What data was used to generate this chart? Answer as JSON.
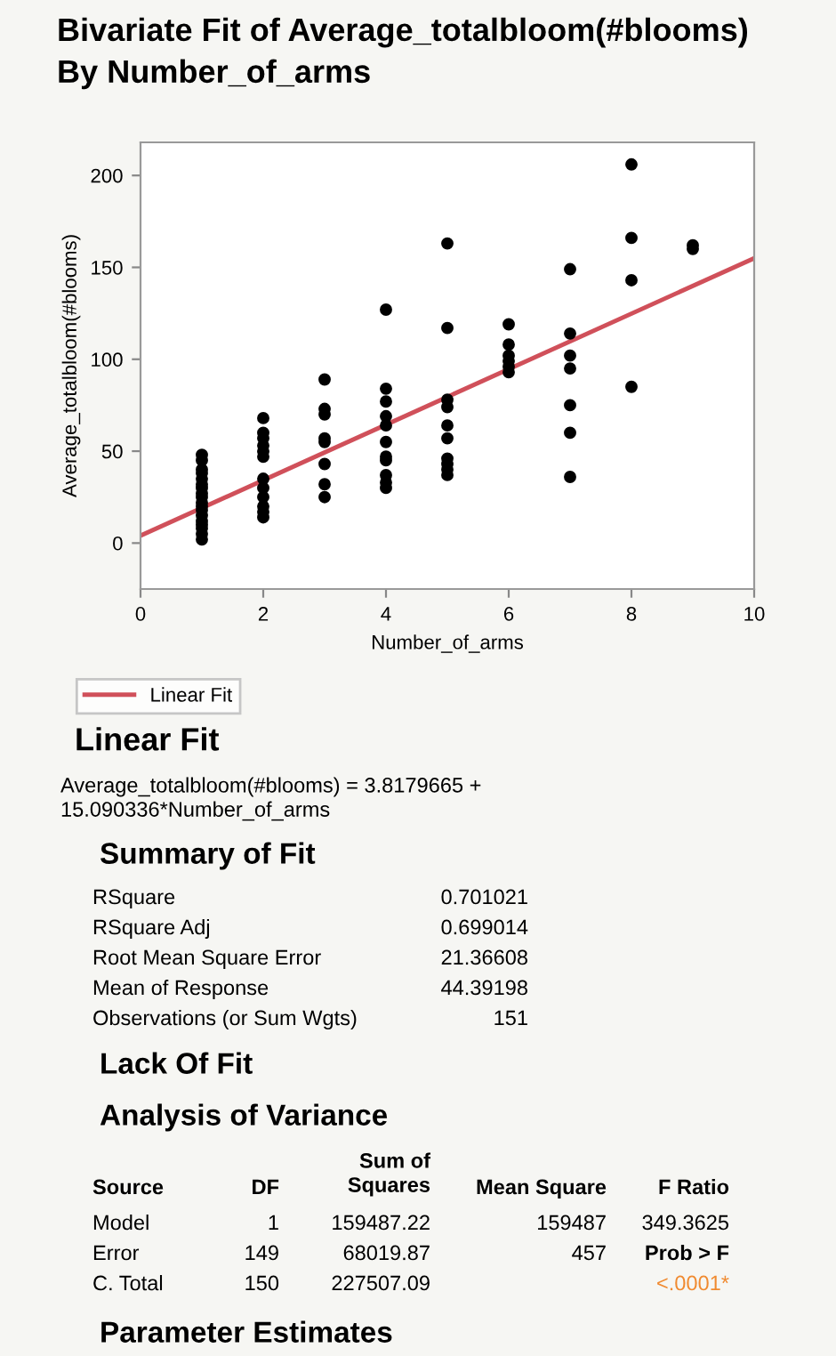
{
  "chart_data": {
    "type": "scatter",
    "title": "Bivariate Fit of Average_totalbloom(#blooms)\nBy Number_of_arms",
    "xlabel": "Number_of_arms",
    "ylabel": "Average_totalbloom(#blooms)",
    "xlim": [
      0,
      10
    ],
    "xticks": [
      0,
      2,
      4,
      6,
      8,
      10
    ],
    "ylim": [
      -25,
      218
    ],
    "yticks": [
      0,
      50,
      100,
      150,
      200
    ],
    "grid": false,
    "legend": "bottom",
    "series": [
      {
        "marker": "circle",
        "color": "#000000",
        "x": [
          1,
          1,
          1,
          1,
          1,
          1,
          1,
          1,
          1,
          1,
          1,
          1,
          1,
          1,
          1,
          1,
          1,
          1,
          2,
          2,
          2,
          2,
          2,
          2,
          2,
          2,
          2,
          2,
          2,
          2,
          3,
          3,
          3,
          3,
          3,
          3,
          3,
          3,
          4,
          4,
          4,
          4,
          4,
          4,
          4,
          4,
          4,
          4,
          4,
          5,
          5,
          5,
          5,
          5,
          5,
          5,
          5,
          5,
          5,
          6,
          6,
          6,
          6,
          6,
          6,
          7,
          7,
          7,
          7,
          7,
          7,
          7,
          8,
          8,
          8,
          8,
          9,
          9
        ],
        "values": [
          2,
          5,
          8,
          10,
          12,
          15,
          18,
          20,
          22,
          25,
          27,
          30,
          32,
          35,
          38,
          40,
          45,
          48,
          14,
          17,
          20,
          25,
          30,
          35,
          47,
          50,
          53,
          57,
          60,
          68,
          25,
          32,
          43,
          55,
          57,
          70,
          73,
          89,
          30,
          33,
          37,
          45,
          47,
          55,
          64,
          69,
          77,
          84,
          127,
          37,
          40,
          43,
          46,
          57,
          64,
          74,
          78,
          117,
          163,
          93,
          96,
          99,
          102,
          108,
          119,
          36,
          60,
          75,
          95,
          102,
          114,
          149,
          85,
          143,
          166,
          206,
          160,
          162
        ]
      },
      {
        "type": "line",
        "name": "Linear Fit",
        "color": "#d0505a",
        "marker": "none",
        "line_style": "solid",
        "x": [
          0,
          10
        ],
        "values": [
          4,
          155
        ]
      }
    ],
    "annotations": [
      "Linear Fit",
      "Average_totalbloom(#blooms) = 3.8179665 +\n15.090336*Number_of_arms",
      "Summary of Fit",
      "RSquare",
      "0.701021",
      "RSquare Adj",
      "0.699014",
      "Root Mean Square Error",
      "21.36608",
      "Mean of Response",
      "44.39198",
      "Observations (or Sum Wgts)",
      "151",
      "Lack Of Fit",
      "Analysis of Variance",
      "Source",
      "DF",
      "Sum of\nSquares",
      "Mean Square",
      "F Ratio",
      "Model",
      "1",
      "159487.22",
      "159487",
      "349.3625",
      "Error",
      "149",
      "68019.87",
      "457",
      "Prob > F",
      "C. Total",
      "150",
      "227507.09",
      "<.0001*",
      "Parameter Estimates"
    ]
  }
}
